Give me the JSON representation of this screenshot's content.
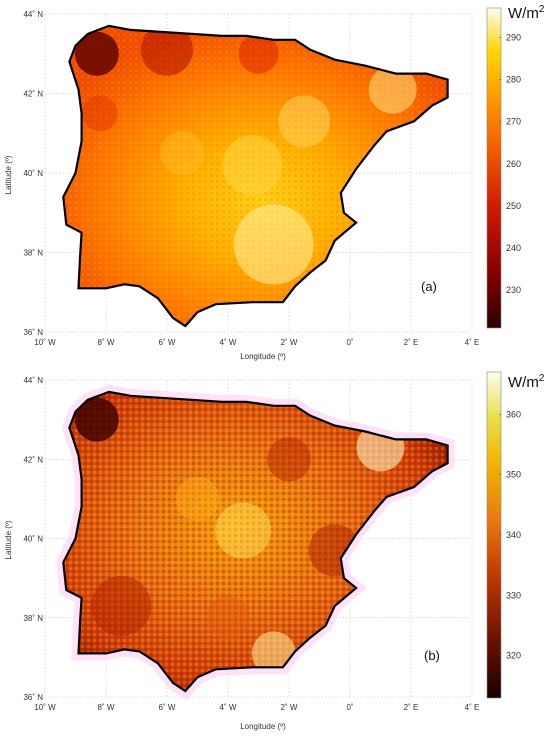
{
  "panels": [
    {
      "label": "(a)",
      "unit": "W/m",
      "unit_sup": "2",
      "colorbar_ticks": [
        "290",
        "280",
        "270",
        "260",
        "250",
        "240",
        "230"
      ],
      "xlabel": "Longitude (º)",
      "ylabel": "Latitude (º)",
      "x_ticks": [
        "10˚ W",
        "8˚ W",
        "6˚ W",
        "4˚ W",
        "2˚ W",
        "0˚",
        "2˚ E",
        "4˚ E"
      ],
      "y_ticks": [
        "44˚ N",
        "42˚ N",
        "40˚ N",
        "38˚ N",
        "36˚ N"
      ],
      "colormap": [
        "#2a0000",
        "#8b0000",
        "#d11a00",
        "#f05a00",
        "#ff9a00",
        "#ffd400",
        "#fff7c8"
      ]
    },
    {
      "label": "(b)",
      "unit": "W/m",
      "unit_sup": "2",
      "colorbar_ticks": [
        "360",
        "350",
        "340",
        "330",
        "320"
      ],
      "xlabel": "Longitude (º)",
      "ylabel": "Latitude (º)",
      "x_ticks": [
        "10˚ W",
        "8˚ W",
        "6˚ W",
        "4˚ W",
        "2˚ W",
        "0˚",
        "2˚ E",
        "4˚ E"
      ],
      "y_ticks": [
        "44˚ N",
        "42˚ N",
        "40˚ N",
        "38˚ N",
        "36˚ N"
      ],
      "colormap": [
        "#1a0000",
        "#6e1000",
        "#c23a00",
        "#ea7a10",
        "#f4b400",
        "#e8e04a",
        "#fffbe6"
      ]
    }
  ]
}
